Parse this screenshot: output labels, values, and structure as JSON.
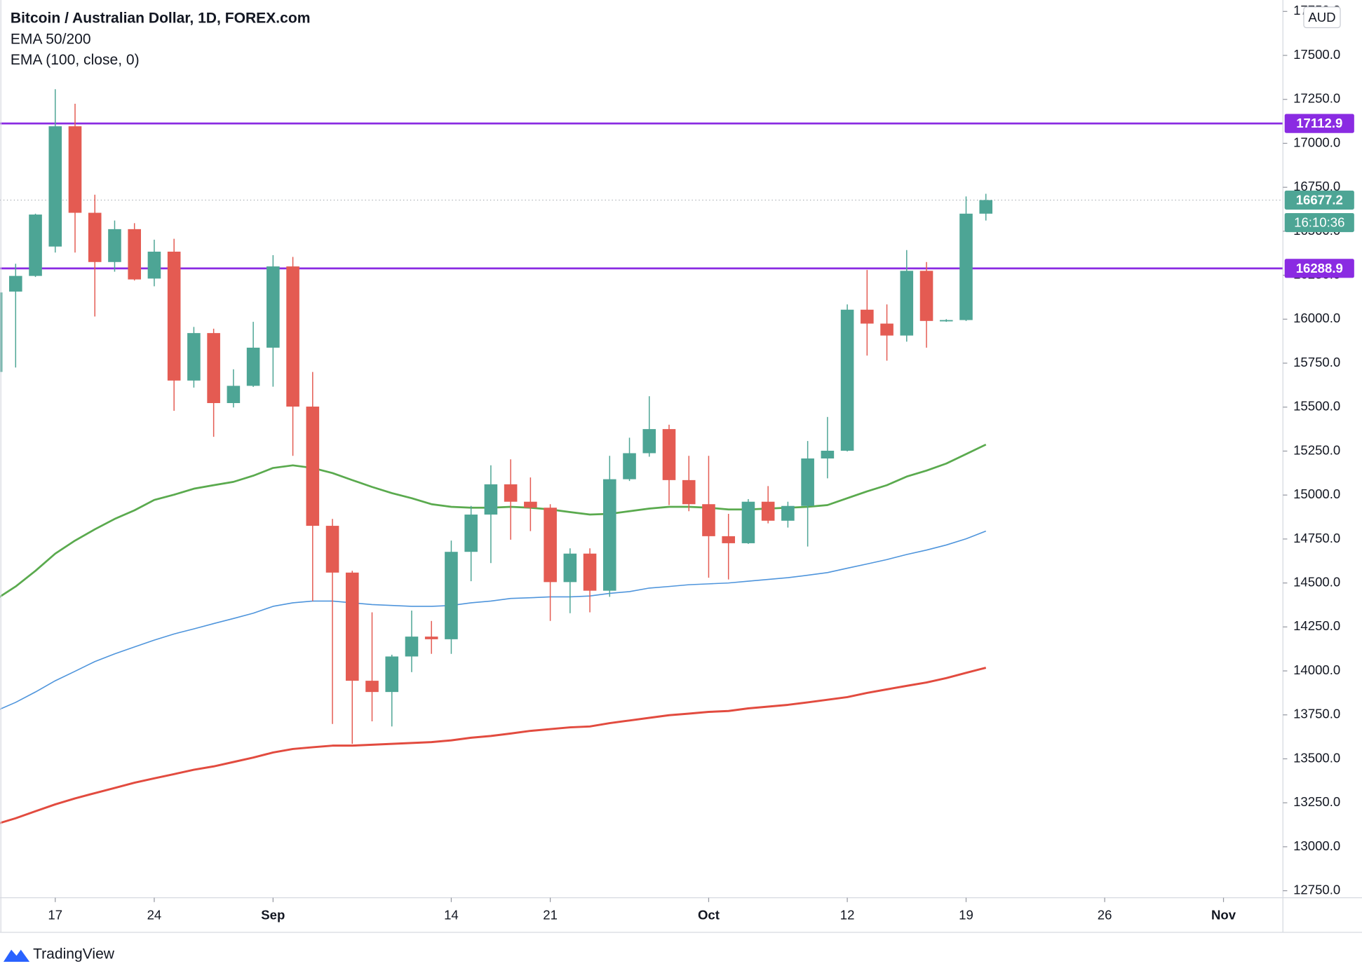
{
  "chart_data": {
    "type": "candlestick",
    "title": "Bitcoin / Australian Dollar, 1D, FOREX.com",
    "legend": [
      "EMA 50/200",
      "EMA (100, close, 0)"
    ],
    "currency": "AUD",
    "open": [
      15700,
      16157,
      16246,
      16413,
      17097,
      16605,
      16325,
      16512,
      16231,
      16384,
      15651,
      15921,
      15523,
      15621,
      15838,
      16300,
      15503,
      14825,
      14559,
      13944,
      13880,
      14082,
      14195,
      14180,
      14677,
      14889,
      15061,
      14962,
      14928,
      14505,
      14667,
      14456,
      15090,
      15238,
      15375,
      15085,
      14948,
      14766,
      14726,
      14962,
      14854,
      14938,
      15208,
      15252,
      16054,
      15975,
      15907,
      16275,
      15990,
      15995,
      16600
    ],
    "high": [
      16160,
      16315,
      16600,
      17308,
      17225,
      16708,
      16561,
      16546,
      16452,
      16457,
      15956,
      15946,
      15715,
      15985,
      16364,
      16354,
      15700,
      14864,
      14569,
      14333,
      14092,
      14343,
      14284,
      14741,
      14938,
      15169,
      15203,
      15100,
      14948,
      14697,
      14697,
      15223,
      15326,
      15562,
      15400,
      15223,
      15223,
      14893,
      14977,
      15051,
      14962,
      15307,
      15444,
      16084,
      16280,
      16084,
      16393,
      16325,
      16000,
      16698,
      16713
    ],
    "low": [
      15690,
      15725,
      16240,
      16379,
      16379,
      16015,
      16270,
      16220,
      16187,
      15479,
      15611,
      15331,
      15498,
      15615,
      15616,
      15223,
      14397,
      13698,
      13585,
      13713,
      13684,
      13993,
      14097,
      14097,
      14510,
      14613,
      14746,
      14795,
      14284,
      14328,
      14333,
      14421,
      15080,
      15218,
      14943,
      14908,
      14530,
      14520,
      14722,
      14839,
      14815,
      14707,
      15095,
      15248,
      15793,
      15764,
      15872,
      15838,
      15985,
      15990,
      16561
    ],
    "close": [
      16152,
      16246,
      16595,
      17097,
      16605,
      16325,
      16512,
      16226,
      16384,
      15651,
      15921,
      15523,
      15621,
      15838,
      16300,
      15503,
      14825,
      14559,
      13944,
      13880,
      14082,
      14195,
      14180,
      14677,
      14889,
      15061,
      14962,
      14928,
      14505,
      14667,
      14456,
      15090,
      15238,
      15375,
      15085,
      14948,
      14766,
      14726,
      14962,
      14854,
      14938,
      15208,
      15252,
      16054,
      15975,
      15907,
      16275,
      15990,
      15995,
      16600,
      16677.2
    ],
    "up_color": "#4da595",
    "down_color": "#e45b52",
    "lines": [
      {
        "color": "#5aaa4e",
        "values": [
          14407,
          14480,
          14569,
          14667,
          14741,
          14805,
          14864,
          14913,
          14972,
          15002,
          15036,
          15056,
          15075,
          15110,
          15154,
          15169,
          15154,
          15125,
          15085,
          15046,
          15011,
          14982,
          14948,
          14933,
          14928,
          14928,
          14933,
          14928,
          14918,
          14903,
          14889,
          14893,
          14908,
          14923,
          14933,
          14933,
          14928,
          14918,
          14918,
          14923,
          14928,
          14933,
          14943,
          14982,
          15021,
          15056,
          15105,
          15139,
          15179,
          15233,
          15287
        ]
      },
      {
        "color": "#4f95dc",
        "values": [
          13772,
          13821,
          13880,
          13944,
          13998,
          14053,
          14097,
          14136,
          14175,
          14210,
          14239,
          14269,
          14298,
          14328,
          14367,
          14387,
          14397,
          14397,
          14387,
          14377,
          14372,
          14367,
          14367,
          14372,
          14387,
          14397,
          14412,
          14416,
          14421,
          14421,
          14426,
          14441,
          14451,
          14471,
          14480,
          14490,
          14495,
          14500,
          14510,
          14520,
          14530,
          14544,
          14559,
          14584,
          14608,
          14633,
          14662,
          14687,
          14716,
          14751,
          14795
        ]
      },
      {
        "color": "#e24b3f",
        "values": [
          13128,
          13162,
          13202,
          13241,
          13275,
          13305,
          13334,
          13364,
          13389,
          13413,
          13438,
          13457,
          13482,
          13507,
          13536,
          13556,
          13566,
          13575,
          13575,
          13580,
          13585,
          13590,
          13595,
          13605,
          13620,
          13630,
          13644,
          13659,
          13669,
          13679,
          13684,
          13703,
          13718,
          13733,
          13748,
          13757,
          13767,
          13772,
          13787,
          13797,
          13807,
          13821,
          13836,
          13851,
          13875,
          13895,
          13915,
          13934,
          13959,
          13989,
          14018
        ]
      }
    ],
    "hlines": [
      {
        "value": 17112.9,
        "color": "#8a2be2"
      },
      {
        "value": 16288.9,
        "color": "#8a2be2"
      }
    ],
    "last_price": {
      "value": 16677.2,
      "countdown": "16:10:36"
    },
    "xlim": [
      0.21,
      65.0
    ],
    "xticks": [
      {
        "value": 3,
        "label": "17"
      },
      {
        "value": 8,
        "label": "24"
      },
      {
        "value": 14,
        "label": "Sep"
      },
      {
        "value": 23,
        "label": "14"
      },
      {
        "value": 28,
        "label": "21"
      },
      {
        "value": 36,
        "label": "Oct"
      },
      {
        "value": 43,
        "label": "12"
      },
      {
        "value": 49,
        "label": "19"
      },
      {
        "value": 56,
        "label": "26"
      },
      {
        "value": 62,
        "label": "Nov"
      }
    ],
    "ylim": [
      12710,
      17815
    ],
    "yticks": [
      {
        "value": 12750,
        "label": "12750.0"
      },
      {
        "value": 13000,
        "label": "13000.0"
      },
      {
        "value": 13250,
        "label": "13250.0"
      },
      {
        "value": 13500,
        "label": "13500.0"
      },
      {
        "value": 13750,
        "label": "13750.0"
      },
      {
        "value": 14000,
        "label": "14000.0"
      },
      {
        "value": 14250,
        "label": "14250.0"
      },
      {
        "value": 14500,
        "label": "14500.0"
      },
      {
        "value": 14750,
        "label": "14750.0"
      },
      {
        "value": 15000,
        "label": "15000.0"
      },
      {
        "value": 15250,
        "label": "15250.0"
      },
      {
        "value": 15500,
        "label": "15500.0"
      },
      {
        "value": 15750,
        "label": "15750.0"
      },
      {
        "value": 16000,
        "label": "16000.0"
      },
      {
        "value": 16250,
        "label": "16250.0"
      },
      {
        "value": 16500,
        "label": "16500.0"
      },
      {
        "value": 16750,
        "label": "16750.0"
      },
      {
        "value": 17000,
        "label": "17000.0"
      },
      {
        "value": 17250,
        "label": "17250.0"
      },
      {
        "value": 17500,
        "label": "17500.0"
      },
      {
        "value": 17750,
        "label": "17750.0"
      }
    ]
  }
}
